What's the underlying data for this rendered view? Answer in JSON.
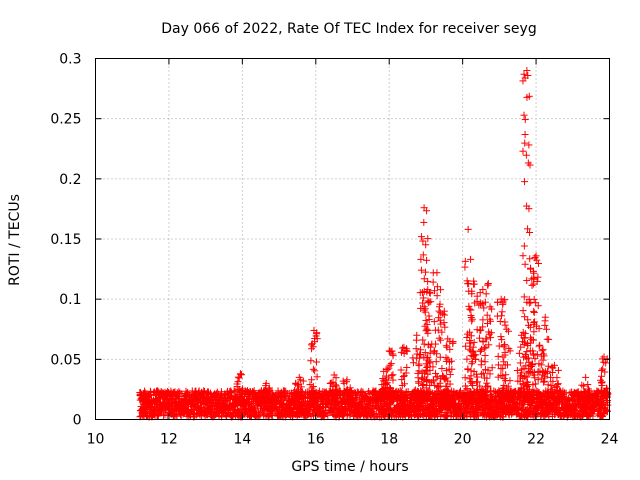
{
  "chart_data": {
    "type": "scatter",
    "title": "Day 066 of 2022, Rate Of TEC Index for receiver seyg",
    "xlabel": "GPS time / hours",
    "ylabel": "ROTI / TECUs",
    "xlim": [
      10,
      24
    ],
    "ylim": [
      0,
      0.3
    ],
    "xticks": [
      10,
      12,
      14,
      16,
      18,
      20,
      22,
      24
    ],
    "yticks": [
      0,
      0.05,
      0.1,
      0.15,
      0.2,
      0.25,
      0.3
    ],
    "xtick_labels": [
      "10",
      "12",
      "14",
      "16",
      "18",
      "20",
      "22",
      "24"
    ],
    "ytick_labels": [
      "0",
      "0.05",
      "0.1",
      "0.15",
      "0.2",
      "0.25",
      "0.3"
    ],
    "grid": true,
    "marker": "+",
    "color": "#ff0000",
    "time_range": [
      11.2,
      23.95
    ],
    "baseline_band": [
      0.0,
      0.022
    ],
    "peaks": [
      {
        "x": 11.35,
        "y": 0.02
      },
      {
        "x": 13.95,
        "y": 0.038
      },
      {
        "x": 14.65,
        "y": 0.03
      },
      {
        "x": 15.55,
        "y": 0.035
      },
      {
        "x": 15.95,
        "y": 0.074
      },
      {
        "x": 16.5,
        "y": 0.037
      },
      {
        "x": 16.85,
        "y": 0.033
      },
      {
        "x": 17.85,
        "y": 0.04
      },
      {
        "x": 18.0,
        "y": 0.057
      },
      {
        "x": 18.4,
        "y": 0.06
      },
      {
        "x": 18.75,
        "y": 0.07
      },
      {
        "x": 18.95,
        "y": 0.176
      },
      {
        "x": 19.05,
        "y": 0.108
      },
      {
        "x": 19.3,
        "y": 0.122
      },
      {
        "x": 19.5,
        "y": 0.09
      },
      {
        "x": 19.65,
        "y": 0.065
      },
      {
        "x": 20.15,
        "y": 0.158
      },
      {
        "x": 20.3,
        "y": 0.115
      },
      {
        "x": 20.55,
        "y": 0.108
      },
      {
        "x": 20.7,
        "y": 0.113
      },
      {
        "x": 21.05,
        "y": 0.1
      },
      {
        "x": 21.2,
        "y": 0.075
      },
      {
        "x": 21.6,
        "y": 0.07
      },
      {
        "x": 21.75,
        "y": 0.29
      },
      {
        "x": 21.85,
        "y": 0.125
      },
      {
        "x": 22.0,
        "y": 0.136
      },
      {
        "x": 22.25,
        "y": 0.085
      },
      {
        "x": 22.5,
        "y": 0.045
      },
      {
        "x": 23.35,
        "y": 0.035
      },
      {
        "x": 23.85,
        "y": 0.052
      }
    ]
  }
}
